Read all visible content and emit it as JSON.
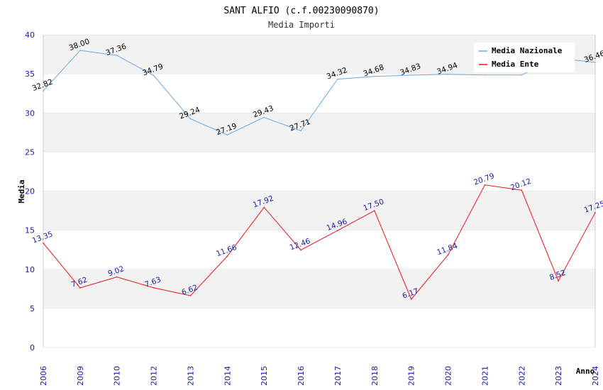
{
  "colors": {
    "nazionale": "#6aa9e0",
    "ente": "#e8131b",
    "band": "#f2f2f2",
    "grid": "#dddddd",
    "tick_text": "#1a1aa6"
  },
  "chart_data": {
    "type": "line",
    "title": "SANT ALFIO (c.f.00230090870)",
    "subtitle": "Media Importi",
    "xlabel": "Anno",
    "ylabel": "Media",
    "ylim": [
      0,
      40
    ],
    "yticks": [
      "0",
      "5",
      "10",
      "15",
      "20",
      "25",
      "30",
      "35",
      "40"
    ],
    "categories": [
      "2006",
      "2009",
      "2010",
      "2012",
      "2013",
      "2014",
      "2015",
      "2016",
      "2017",
      "2018",
      "2019",
      "2020",
      "2021",
      "2022",
      "2023",
      "2024"
    ],
    "legend_position": "top-right",
    "series": [
      {
        "name": "Media Nazionale",
        "color_key": "nazionale",
        "values": [
          32.82,
          38.0,
          37.36,
          34.79,
          29.24,
          27.19,
          29.43,
          27.71,
          34.32,
          34.68,
          34.83,
          34.94,
          34.85,
          34.85,
          37.0,
          36.46
        ],
        "labels": [
          "32.82",
          "38.00",
          "37.36",
          "34.79",
          "29.24",
          "27.19",
          "29.43",
          "27.71",
          "34.32",
          "34.68",
          "34.83",
          "34.94",
          "",
          "",
          "",
          "36.46"
        ]
      },
      {
        "name": "Media Ente",
        "color_key": "ente",
        "values": [
          13.35,
          7.62,
          9.02,
          7.63,
          6.62,
          11.66,
          17.92,
          12.46,
          14.96,
          17.5,
          6.17,
          11.84,
          20.79,
          20.12,
          8.52,
          17.25
        ],
        "labels": [
          "13.35",
          "7.62",
          "9.02",
          "7.63",
          "6.62",
          "11.66",
          "17.92",
          "12.46",
          "14.96",
          "17.50",
          "6.17",
          "11.84",
          "20.79",
          "20.12",
          "8.52",
          "17.25"
        ]
      }
    ]
  }
}
